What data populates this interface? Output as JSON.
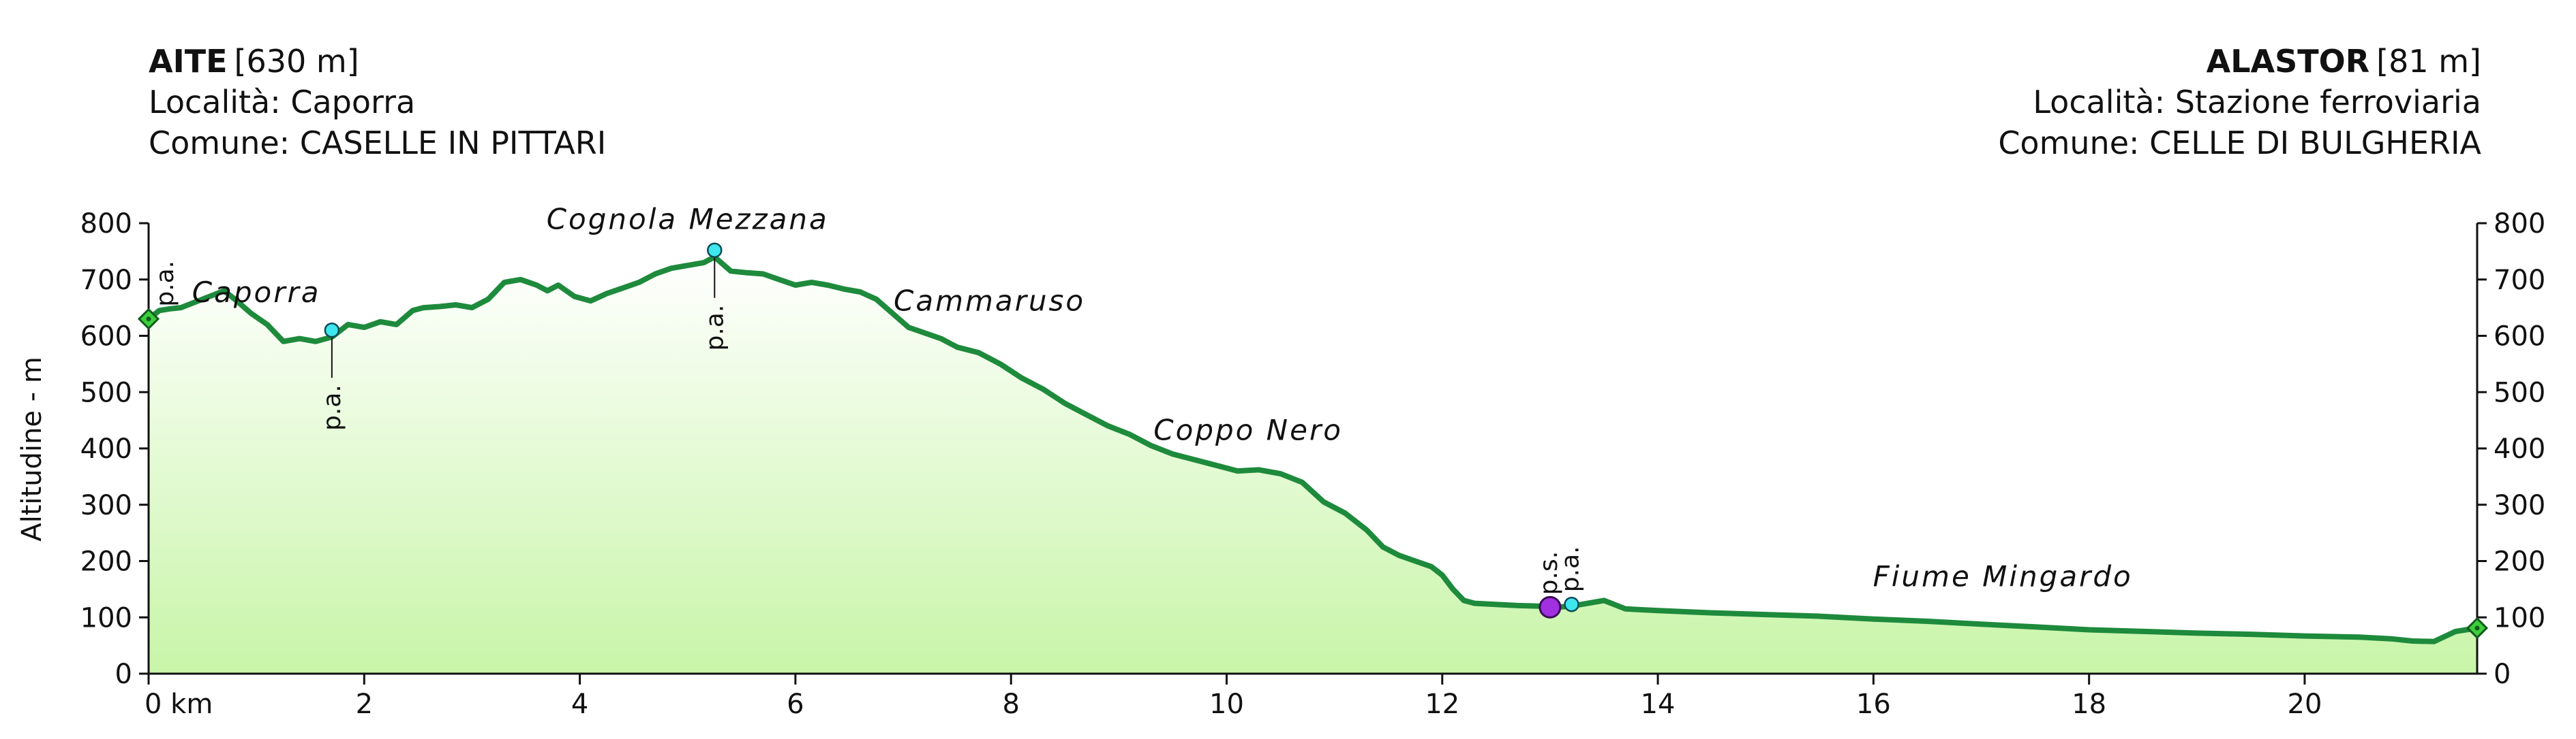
{
  "header": {
    "start": {
      "name": "AITE",
      "altitude": "[630 m]",
      "localita": "Località: Caporra",
      "comune": "Comune: CASELLE IN PITTARI"
    },
    "end": {
      "name": "ALASTOR",
      "altitude": "[81 m]",
      "localita": "Località: Stazione ferroviaria",
      "comune": "Comune: CELLE DI BULGHERIA"
    }
  },
  "colors": {
    "line": "#1e8a3c",
    "fill_top": "#ffffff",
    "fill_bottom": "#c8f5a8",
    "endpoint": "#3ccf3c",
    "point_pa": "#3ee6ee",
    "point_ps": "#a030e0"
  },
  "chart_data": {
    "type": "area",
    "ylabel": "Altitudine - m",
    "x_unit": "km",
    "xlim": [
      0,
      21.6
    ],
    "ylim": [
      0,
      800
    ],
    "x_ticks": [
      0,
      2,
      4,
      6,
      8,
      10,
      12,
      14,
      16,
      18,
      20
    ],
    "x_tick_labels": [
      "0 km",
      "2",
      "4",
      "6",
      "8",
      "10",
      "12",
      "14",
      "16",
      "18",
      "20"
    ],
    "y_ticks": [
      0,
      100,
      200,
      300,
      400,
      500,
      600,
      700,
      800
    ],
    "grid": false,
    "series": [
      {
        "x": [
          0,
          0.1,
          0.2,
          0.3,
          0.5,
          0.7,
          0.8,
          0.95,
          1.1,
          1.25,
          1.4,
          1.55,
          1.7,
          1.85,
          2.0,
          2.15,
          2.3,
          2.45,
          2.55,
          2.7,
          2.85,
          3.0,
          3.15,
          3.3,
          3.45,
          3.6,
          3.7,
          3.8,
          3.95,
          4.1,
          4.25,
          4.4,
          4.55,
          4.7,
          4.85,
          5.0,
          5.15,
          5.25,
          5.4,
          5.55,
          5.7,
          5.85,
          6.0,
          6.15,
          6.3,
          6.45,
          6.6,
          6.75,
          6.9,
          7.05,
          7.2,
          7.35,
          7.5,
          7.7,
          7.9,
          8.1,
          8.3,
          8.5,
          8.7,
          8.9,
          9.1,
          9.3,
          9.5,
          9.7,
          9.9,
          10.1,
          10.3,
          10.5,
          10.7,
          10.9,
          11.1,
          11.3,
          11.45,
          11.6,
          11.75,
          11.9,
          12.0,
          12.1,
          12.2,
          12.3,
          12.5,
          12.7,
          12.9,
          13.05,
          13.2,
          13.35,
          13.5,
          13.7,
          14.0,
          14.5,
          15.0,
          15.5,
          16.0,
          16.5,
          17.0,
          17.5,
          18.0,
          18.5,
          19.0,
          19.5,
          20.0,
          20.5,
          20.8,
          21.0,
          21.2,
          21.4,
          21.6
        ],
        "y": [
          630,
          645,
          648,
          650,
          665,
          680,
          665,
          640,
          620,
          590,
          595,
          590,
          598,
          620,
          615,
          625,
          620,
          645,
          650,
          652,
          655,
          650,
          665,
          695,
          700,
          690,
          680,
          690,
          670,
          662,
          675,
          685,
          695,
          710,
          720,
          725,
          730,
          740,
          715,
          712,
          710,
          700,
          690,
          695,
          690,
          683,
          678,
          665,
          640,
          615,
          605,
          595,
          580,
          570,
          550,
          525,
          505,
          480,
          460,
          440,
          425,
          405,
          390,
          380,
          370,
          360,
          362,
          355,
          340,
          305,
          285,
          255,
          225,
          210,
          200,
          190,
          175,
          150,
          130,
          125,
          123,
          121,
          120,
          118,
          120,
          125,
          130,
          115,
          112,
          108,
          105,
          102,
          97,
          93,
          88,
          83,
          78,
          75,
          72,
          70,
          67,
          65,
          62,
          58,
          57,
          75,
          81
        ]
      }
    ],
    "places": [
      {
        "label": "Caporra",
        "x": 1.0,
        "y": 660
      },
      {
        "label": "Cognola Mezzana",
        "x": 5.0,
        "y": 790
      },
      {
        "label": "Cammaruso",
        "x": 7.8,
        "y": 645
      },
      {
        "label": "Coppo Nero",
        "x": 10.2,
        "y": 415
      },
      {
        "label": "Fiume Mingardo",
        "x": 17.2,
        "y": 155
      }
    ],
    "points": [
      {
        "label": "p.a.",
        "x": 0,
        "y": 630,
        "kind": "endpoint",
        "label_pos": "above"
      },
      {
        "label": "p.a.",
        "x": 1.7,
        "y": 610,
        "kind": "pa",
        "label_pos": "below"
      },
      {
        "label": "p.a.",
        "x": 5.25,
        "y": 752,
        "kind": "pa",
        "label_pos": "below"
      },
      {
        "label": "p.s.",
        "x": 13.0,
        "y": 118,
        "kind": "ps",
        "label_pos": "above"
      },
      {
        "label": "p.a.",
        "x": 13.2,
        "y": 123,
        "kind": "pa",
        "label_pos": "above"
      },
      {
        "label": "",
        "x": 21.6,
        "y": 81,
        "kind": "endpoint",
        "label_pos": "none"
      }
    ]
  }
}
